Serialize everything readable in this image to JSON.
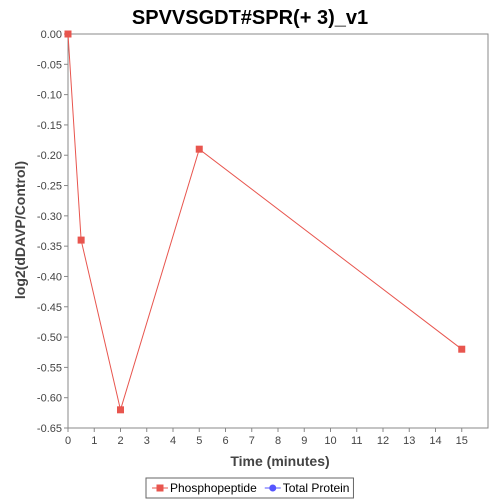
{
  "chart_data": {
    "type": "line",
    "title": "SPVVSGDT#SPR(+ 3)_v1",
    "xlabel": "Time (minutes)",
    "ylabel": "log2(dDAVP/Control)",
    "xlim": [
      0,
      16
    ],
    "ylim": [
      -0.65,
      0.0
    ],
    "x_ticks": [
      0,
      1,
      2,
      3,
      4,
      5,
      6,
      7,
      8,
      9,
      10,
      11,
      12,
      13,
      14,
      15
    ],
    "y_ticks": [
      0.0,
      -0.05,
      -0.1,
      -0.15,
      -0.2,
      -0.25,
      -0.3,
      -0.35,
      -0.4,
      -0.45,
      -0.5,
      -0.55,
      -0.6,
      -0.65
    ],
    "y_tick_labels": [
      "0.00",
      "-0.05",
      "-0.10",
      "-0.15",
      "-0.20",
      "-0.25",
      "-0.30",
      "-0.35",
      "-0.40",
      "-0.45",
      "-0.50",
      "-0.55",
      "-0.60",
      "-0.65"
    ],
    "grid": false,
    "legend_position": "bottom-center",
    "series": [
      {
        "name": "Phosphopeptide",
        "color": "#e8554e",
        "marker": "square",
        "x": [
          0,
          0.5,
          2,
          5,
          15
        ],
        "y": [
          0.0,
          -0.34,
          -0.62,
          -0.19,
          -0.52
        ]
      },
      {
        "name": "Total Protein",
        "color": "#5555ff",
        "marker": "circle",
        "x": [],
        "y": []
      }
    ]
  }
}
